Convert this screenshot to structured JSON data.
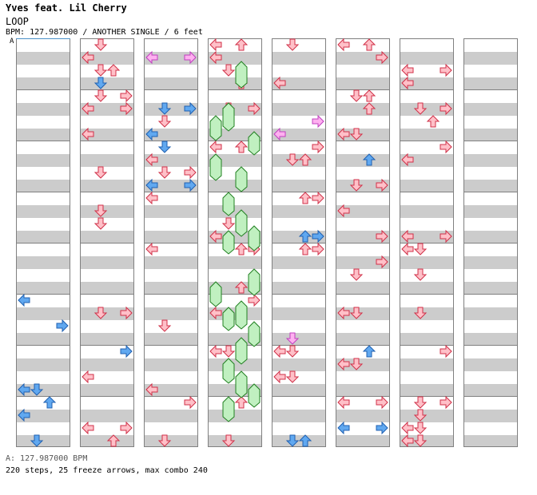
{
  "header": {
    "artist": "Yves feat. Lil Cherry",
    "song_title": "LOOP",
    "chart_info": "BPM: 127.987000 / ANOTHER SINGLE / 6 feet"
  },
  "cursor_label": "A",
  "footer": {
    "bpm_line": "A: 127.987000 BPM",
    "stats_line": "220 steps, 25 freeze arrows, max combo 240"
  },
  "colors": {
    "red_arrow_fill": "#ffc0c8",
    "red_arrow_stroke": "#d03048",
    "blue_arrow_fill": "#60a8f0",
    "pink_arrow_fill": "#ffb0f0",
    "freeze_fill": "#c0f0c0",
    "freeze_stroke": "#208020"
  },
  "icons": [
    "step-arrow-left-icon",
    "step-arrow-down-icon",
    "step-arrow-up-icon",
    "step-arrow-right-icon",
    "freeze-arrow-icon"
  ],
  "chart_data": {
    "type": "step-chart",
    "bpm": 127.987,
    "steps": 220,
    "freeze_arrows": 25,
    "max_combo": 240
  }
}
